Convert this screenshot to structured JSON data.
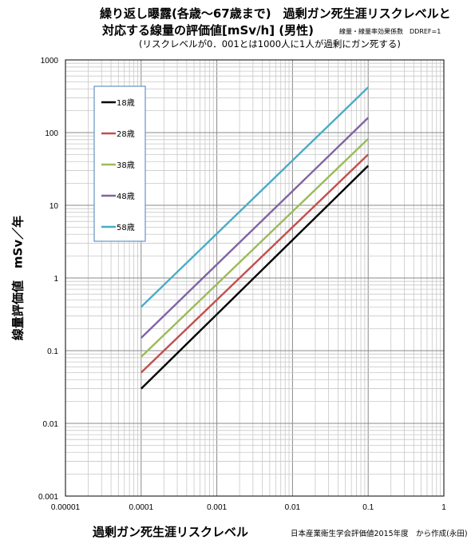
{
  "chart_data": {
    "type": "line",
    "title": "繰り返し曝露(各歳～67歳まで)　過剰ガン死生涯リスクレベルと",
    "title_line2": "対応する線量の評価値[mSv/h] (男性)",
    "note": "線量・線量率効果係数　DDREF=1",
    "subtitle": "(リスクレベルが0．001とは1000人に1人が過剰にガン死する)",
    "xlabel": "過剰ガン死生涯リスクレベル",
    "ylabel": "線量評価値　mSv／年",
    "source": "日本産業衛生学会評価値2015年度　から作成(永田)",
    "x_scale": "log",
    "y_scale": "log",
    "xlim": [
      1e-05,
      1
    ],
    "ylim": [
      0.001,
      1000
    ],
    "x_ticks": [
      "0.00001",
      "0.0001",
      "0.001",
      "0.01",
      "0.1",
      "1"
    ],
    "y_ticks": [
      "0.001",
      "0.01",
      "0.1",
      "1",
      "10",
      "100",
      "1000"
    ],
    "grid": true,
    "legend_position": "top-left",
    "series": [
      {
        "name": "18歳",
        "color": "#000000",
        "x": [
          0.0001,
          0.1
        ],
        "y": [
          0.03,
          35
        ]
      },
      {
        "name": "28歳",
        "color": "#c0504d",
        "x": [
          0.0001,
          0.1
        ],
        "y": [
          0.05,
          50
        ]
      },
      {
        "name": "38歳",
        "color": "#9bbb59",
        "x": [
          0.0001,
          0.1
        ],
        "y": [
          0.082,
          82
        ]
      },
      {
        "name": "48歳",
        "color": "#8064a2",
        "x": [
          0.0001,
          0.1
        ],
        "y": [
          0.15,
          160
        ]
      },
      {
        "name": "58歳",
        "color": "#4bacc6",
        "x": [
          0.0001,
          0.1
        ],
        "y": [
          0.4,
          420
        ]
      }
    ]
  }
}
